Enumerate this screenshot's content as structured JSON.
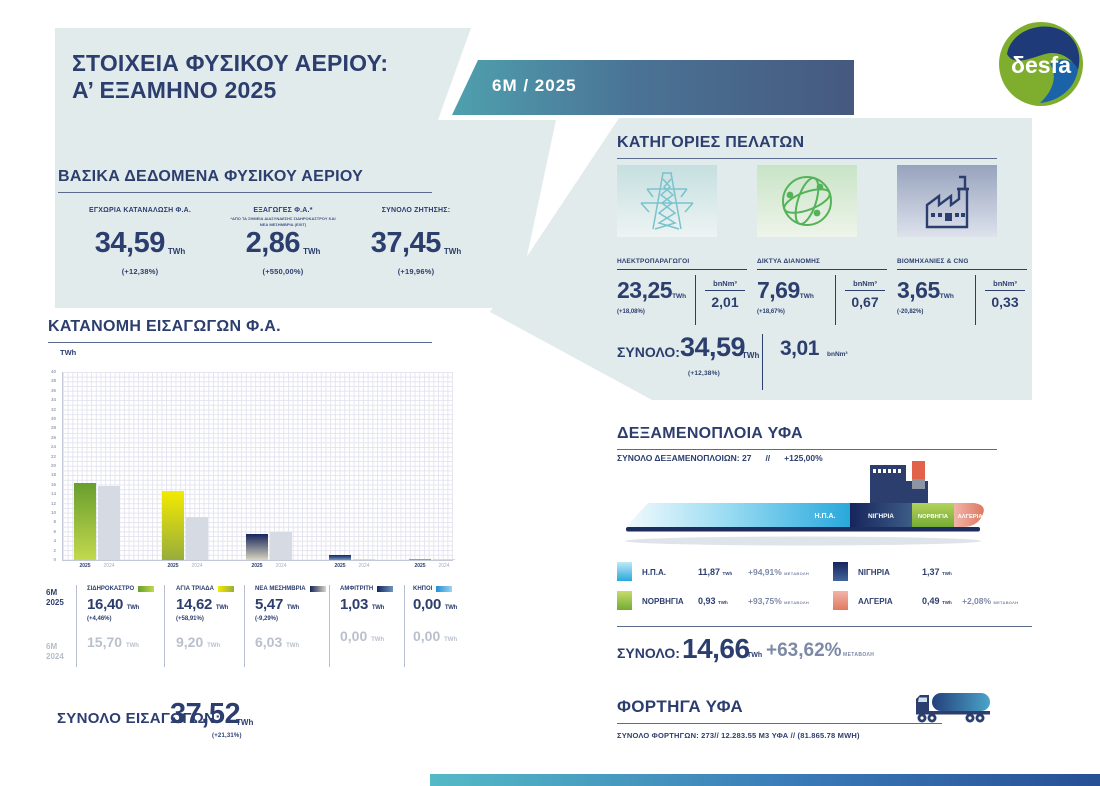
{
  "colors": {
    "navy": "#2c3e6e",
    "panel": "#e2ebec",
    "badge_gradient": [
      "#4fa0ae",
      "#46597f"
    ],
    "usa": [
      "#bfe9f8",
      "#29a8dc"
    ],
    "norway": [
      "#c6dc6a",
      "#74ab35"
    ],
    "nigeria": [
      "#16255c",
      "#41659c"
    ],
    "algeria": [
      "#f2b4a8",
      "#e17a61"
    ]
  },
  "header": {
    "title_line1": "ΣΤΟΙΧΕΙΑ ΦΥΣΙΚΟΥ ΑΕΡΙΟΥ:",
    "title_line2": "Α’ ΕΞΑΜΗΝΟ 2025",
    "badge": "6M / 2025",
    "logo_text": "δesfa"
  },
  "basic_data": {
    "section_title": "ΒΑΣΙΚΑ ΔΕΔΟΜΕΝΑ ΦΥΣΙΚΟΥ ΑΕΡΙΟΥ",
    "stats": [
      {
        "label": "ΕΓΧΩΡΙΑ ΚΑΤΑΝΑΛΩΣΗ Φ.Α.",
        "value": "34,59",
        "unit": "TWh",
        "change": "(+12,38%)"
      },
      {
        "label": "ΕΞΑΓΩΓΕΣ Φ.Α.*",
        "footnote": "*ΑΠΟ ΤΑ ΣΗΜΕΙΑ ΔΙΑΣΥΝΔΕΣΗΣ ΣΙΔΗΡΟΚΑΣΤΡΟΥ ΚΑΙ ΝΕΑ ΜΕΣΗΜΒΡΙΑ (EXIT)",
        "value": "2,86",
        "unit": "TWh",
        "change": "(+550,00%)"
      },
      {
        "label": "ΣΥΝΟΛΟ ΖΗΤΗΣΗΣ:",
        "value": "37,45",
        "unit": "TWh",
        "change": "(+19,96%)"
      }
    ]
  },
  "customers": {
    "section_title": "ΚΑΤΗΓΟΡΙΕΣ ΠΕΛΑΤΩΝ",
    "categories": [
      {
        "label": "ΗΛΕΚΤΡΟΠΑΡΑΓΩΓΟΙ",
        "icon": "electricity-pylon-icon",
        "twh": "23,25",
        "twh_unit": "TWh",
        "change": "(+18,08%)",
        "bn_unit": "bnNm³",
        "bn": "2,01"
      },
      {
        "label": "ΔΙΚΤΥΑ ΔΙΑΝΟΜΗΣ",
        "icon": "distribution-network-icon",
        "twh": "7,69",
        "twh_unit": "TWh",
        "change": "(+18,67%)",
        "bn_unit": "bnNm³",
        "bn": "0,67"
      },
      {
        "label": "ΒΙΟΜΗΧΑΝΙΕΣ & CNG",
        "icon": "factory-icon",
        "twh": "3,65",
        "twh_unit": "TWh",
        "change": "(-20,82%)",
        "bn_unit": "bnNm³",
        "bn": "0,33"
      }
    ],
    "total": {
      "label": "ΣΥΝΟΛΟ:",
      "value": "34,59",
      "unit": "TWh",
      "change": "(+12,38%)",
      "bn": "3,01",
      "bn_unit": "bnNm³"
    }
  },
  "chart_data": {
    "type": "bar",
    "title": "ΚΑΤΑΝΟΜΗ ΕΙΣΑΓΩΓΩΝ Φ.Α.",
    "ylabel": "TWh",
    "ylim": [
      0,
      40
    ],
    "ytick_step": 2,
    "grid": true,
    "legend_position": "below",
    "categories": [
      "ΣΙΔΗΡΟΚΑΣΤΡΟ",
      "ΑΓΙΑ ΤΡΙΑΔΑ",
      "ΝΕΑ ΜΕΣΗΜΒΡΙΑ",
      "ΑΜΦΙΤΡΙΤΗ",
      "ΚΗΠΟΙ"
    ],
    "series": [
      {
        "name": "6M 2025",
        "label": "2025",
        "values": [
          16.4,
          14.62,
          5.47,
          1.03,
          0.0
        ]
      },
      {
        "name": "6M 2024",
        "label": "2024",
        "values": [
          15.7,
          9.2,
          6.03,
          0.0,
          0.0
        ]
      }
    ],
    "bar_colors_2025": [
      [
        "#699e2e",
        "#c2d94d"
      ],
      [
        "#f3ea00",
        "#97ad3c"
      ],
      [
        "#16255c",
        "#d9d5c0"
      ],
      [
        "#16255c",
        "#6f94c0"
      ],
      [
        "#1e8fd5",
        "#9ed4f2"
      ]
    ],
    "bar_color_2024": "#d6dae3"
  },
  "imports_table": {
    "rows": [
      {
        "p": "6M",
        "y": "2025"
      },
      {
        "p": "6M",
        "y": "2024"
      }
    ],
    "unit": "TWh",
    "columns": [
      {
        "name": "ΣΙΔΗΡΟΚΑΣΤΡΟ",
        "v2025": "16,40",
        "change": "(+4,46%)",
        "v2024": "15,70"
      },
      {
        "name": "ΑΓΙΑ ΤΡΙΑΔΑ",
        "v2025": "14,62",
        "change": "(+58,91%)",
        "v2024": "9,20"
      },
      {
        "name": "ΝΕΑ ΜΕΣΗΜΒΡΙΑ",
        "v2025": "5,47",
        "change": "(-9,29%)",
        "v2024": "6,03"
      },
      {
        "name": "ΑΜΦΙΤΡΙΤΗ",
        "v2025": "1,03",
        "change": "",
        "v2024": "0,00"
      },
      {
        "name": "ΚΗΠΟΙ",
        "v2025": "0,00",
        "change": "",
        "v2024": "0,00"
      }
    ],
    "total_label": "ΣΥΝΟΛΟ ΕΙΣΑΓΩΓΩΝ:",
    "total_value": "37,52",
    "total_unit": "TWh",
    "total_change": "(+21,31%)"
  },
  "tankers": {
    "section_title": "ΔΕΞΑΜΕΝΟΠΛΟΙΑ ΥΦΑ",
    "subtitle_main": "ΣΥΝΟΛΟ ΔΕΞΑΜΕΝΟΠΛΟΙΩΝ: 27",
    "subtitle_sep": "//",
    "subtitle_change": "+125,00%",
    "ship_labels": [
      "Η.Π.Α.",
      "ΝΙΓΗΡΙΑ",
      "ΝΟΡΒΗΓΙΑ",
      "ΑΛΓΕΡΙΑ"
    ],
    "legend_left": [
      {
        "name": "Η.Π.Α.",
        "value": "11,87",
        "unit": "TWh",
        "change": "+94,91%",
        "change_label": "ΜΕΤΑΒΟΛΗ",
        "colors": [
          "#bfe9f8",
          "#29a8dc"
        ]
      },
      {
        "name": "ΝΟΡΒΗΓΙΑ",
        "value": "0,93",
        "unit": "TWh",
        "change": "+93,75%",
        "change_label": "ΜΕΤΑΒΟΛΗ",
        "colors": [
          "#c6dc6a",
          "#74ab35"
        ]
      }
    ],
    "legend_right": [
      {
        "name": "ΝΙΓΗΡΙΑ",
        "value": "1,37",
        "unit": "TWh",
        "change": "",
        "change_label": "",
        "colors": [
          "#16255c",
          "#41659c"
        ]
      },
      {
        "name": "ΑΛΓΕΡΙΑ",
        "value": "0,49",
        "unit": "TWh",
        "change": "+2,08%",
        "change_label": "ΜΕΤΑΒΟΛΗ",
        "colors": [
          "#f2b4a8",
          "#e17a61"
        ]
      }
    ],
    "total_label": "ΣΥΝΟΛΟ:",
    "total_value": "14,66",
    "total_unit": "TWh",
    "total_change": "+63,62%",
    "total_change_label": "ΜΕΤΑΒΟΛΗ"
  },
  "trucks": {
    "section_title": "ΦΟΡΤΗΓΑ ΥΦΑ",
    "subtitle": "ΣΥΝΟΛΟ ΦΟΡΤΗΓΩΝ: 273// 12.283.55 M3 ΥΦΑ // (81.865.78 MWH)"
  }
}
